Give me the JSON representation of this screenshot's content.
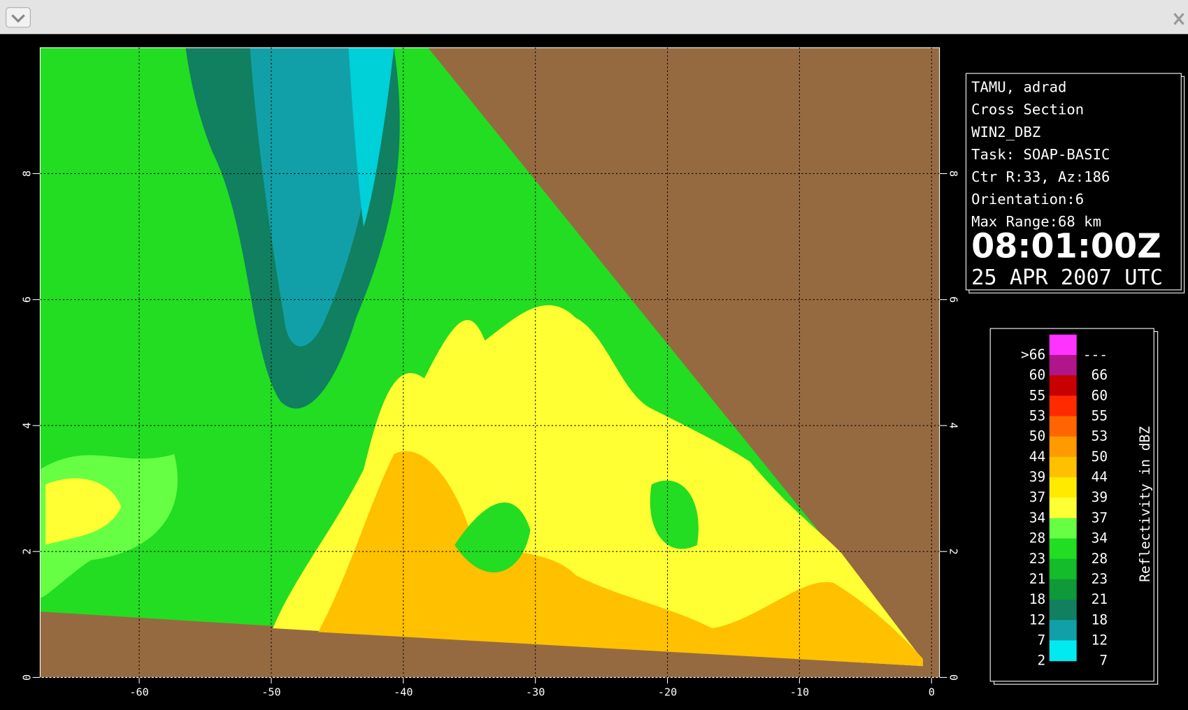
{
  "window": {
    "plot": {
      "xlim": [
        -67.5,
        0.6
      ],
      "ylim": [
        0,
        10
      ],
      "xticks": [
        -60,
        -50,
        -40,
        -30,
        -20,
        -10,
        0
      ],
      "yticks": [
        0,
        2,
        4,
        6,
        8
      ],
      "grid": true
    },
    "info": {
      "lines": [
        "TAMU, adrad",
        "Cross Section",
        "WIN2_DBZ",
        "Task: SOAP-BASIC",
        "Ctr R:33, Az:186",
        "Orientation:6",
        "Max Range:68 km"
      ],
      "time": "08:01:00Z",
      "date": "25 APR 2007 UTC"
    },
    "legend": {
      "title": "Reflectivity in dBZ",
      "rows": [
        {
          "low": ">66",
          "high": "---",
          "color": "#ff33ff"
        },
        {
          "low": "60",
          "high": "66",
          "color": "#b0158a"
        },
        {
          "low": "55",
          "high": "60",
          "color": "#c80000"
        },
        {
          "low": "53",
          "high": "55",
          "color": "#ff2a00"
        },
        {
          "low": "50",
          "high": "53",
          "color": "#ff6600"
        },
        {
          "low": "44",
          "high": "50",
          "color": "#ff9a00"
        },
        {
          "low": "39",
          "high": "44",
          "color": "#ffc000"
        },
        {
          "low": "37",
          "high": "39",
          "color": "#ffea00"
        },
        {
          "low": "34",
          "high": "37",
          "color": "#ffff33"
        },
        {
          "low": "28",
          "high": "34",
          "color": "#66ff44"
        },
        {
          "low": "23",
          "high": "28",
          "color": "#22dd22"
        },
        {
          "low": "21",
          "high": "23",
          "color": "#14bb2a"
        },
        {
          "low": "18",
          "high": "21",
          "color": "#0e9a38"
        },
        {
          "low": "12",
          "high": "18",
          "color": "#108060"
        },
        {
          "low": "7",
          "high": "12",
          "color": "#12a0a8"
        },
        {
          "low": "2",
          "high": "7",
          "color": "#00eaf0"
        }
      ]
    }
  }
}
